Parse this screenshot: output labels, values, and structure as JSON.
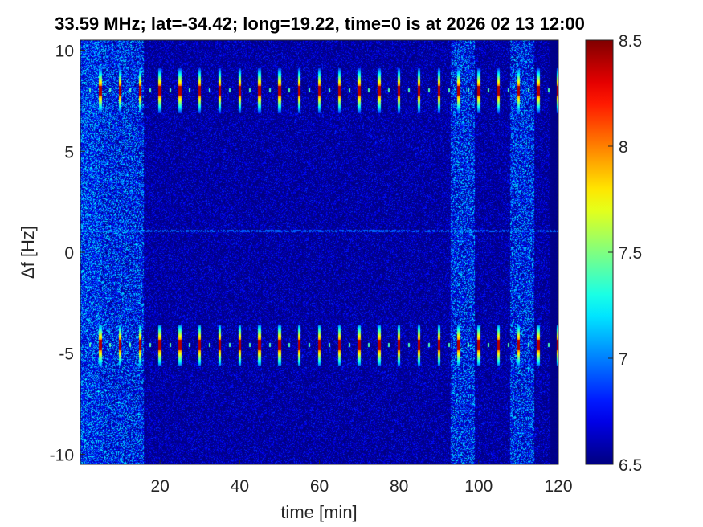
{
  "chart_data": {
    "type": "heatmap",
    "title": "33.59 MHz;  lat=-34.42; long=19.22, time=0 is at 2026 02 13 12:00",
    "xlabel": "time [min]",
    "ylabel": "Δf [Hz]",
    "xlim": [
      0,
      120
    ],
    "ylim": [
      -10.5,
      10.5
    ],
    "x_ticks": [
      20,
      40,
      60,
      80,
      100,
      120
    ],
    "x_tick_labels": [
      "20",
      "40",
      "60",
      "80",
      "100",
      "120"
    ],
    "y_ticks": [
      -10,
      -5,
      0,
      5,
      10
    ],
    "y_tick_labels": [
      "-10",
      "-5",
      "0",
      "5",
      "10"
    ],
    "colorbar": {
      "colormap": "jet",
      "clim": [
        6.5,
        8.5
      ],
      "ticks": [
        6.5,
        7,
        7.5,
        8,
        8.5
      ],
      "tick_labels": [
        "6.5",
        "7",
        "7.5",
        "8",
        "8.5"
      ]
    },
    "bands": [
      {
        "center_hz": 8.0,
        "half_width_hz": 1.1
      },
      {
        "center_hz": -4.6,
        "half_width_hz": 1.0
      }
    ],
    "band_pulse_times_min": [
      5,
      10,
      15,
      20,
      25,
      30,
      35,
      40,
      45,
      50,
      55,
      60,
      65,
      70,
      75,
      80,
      85,
      90,
      95,
      100,
      105,
      110,
      115,
      120
    ],
    "noisy_time_ranges_min": [
      [
        0,
        16
      ],
      [
        93,
        99
      ],
      [
        108,
        114
      ]
    ],
    "dark_time_range_min": [
      118,
      120
    ]
  }
}
